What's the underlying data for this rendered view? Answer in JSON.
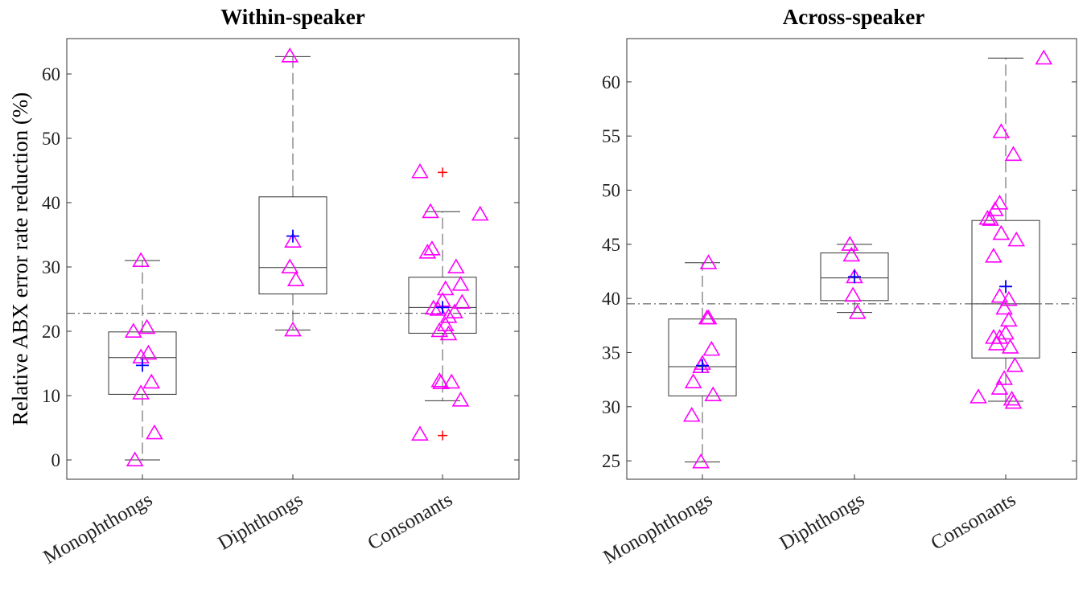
{
  "chart_data": [
    {
      "type": "box",
      "title": "Within-speaker",
      "ylabel": "Relative  ABX error rate reduction (%)",
      "ylim": [
        -3,
        65.5
      ],
      "yticks": [
        0,
        10,
        20,
        30,
        40,
        50,
        60
      ],
      "reference_line": 22.8,
      "categories": [
        "Monophthongs",
        "Diphthongs",
        "Consonants"
      ],
      "boxes": [
        {
          "min": 0,
          "q1": 10.2,
          "median": 15.9,
          "q3": 19.9,
          "max": 31.0,
          "mean": 14.7,
          "outliers": []
        },
        {
          "min": 20.2,
          "q1": 25.8,
          "median": 29.9,
          "q3": 40.9,
          "max": 62.7,
          "mean": 34.8,
          "outliers": []
        },
        {
          "min": 9.2,
          "q1": 19.7,
          "median": 23.7,
          "q3": 28.4,
          "max": 38.6,
          "mean": 23.7,
          "outliers": [
            44.7,
            3.8
          ]
        }
      ],
      "points": [
        [
          [
            -0.06,
            20.0
          ],
          [
            0.03,
            20.6
          ],
          [
            -0.01,
            16.0
          ],
          [
            0.04,
            16.6
          ],
          [
            0.06,
            12.1
          ],
          [
            -0.01,
            10.4
          ],
          [
            0.08,
            4.2
          ],
          [
            -0.05,
            0.0
          ],
          [
            -0.01,
            31.0
          ]
        ],
        [
          [
            -0.02,
            62.8
          ],
          [
            -0.02,
            30.0
          ],
          [
            0.0,
            34.0
          ],
          [
            0.02,
            28.0
          ],
          [
            0.0,
            20.2
          ]
        ],
        [
          [
            -0.15,
            44.8
          ],
          [
            -0.08,
            38.6
          ],
          [
            0.25,
            38.2
          ],
          [
            -0.1,
            32.3
          ],
          [
            -0.07,
            32.8
          ],
          [
            0.09,
            30.0
          ],
          [
            0.12,
            27.3
          ],
          [
            0.02,
            26.6
          ],
          [
            0.0,
            24.8
          ],
          [
            0.13,
            24.5
          ],
          [
            -0.06,
            23.6
          ],
          [
            -0.03,
            23.4
          ],
          [
            0.08,
            23.0
          ],
          [
            0.04,
            22.3
          ],
          [
            0.02,
            21.0
          ],
          [
            -0.02,
            20.1
          ],
          [
            0.04,
            19.6
          ],
          [
            -0.02,
            12.3
          ],
          [
            -0.01,
            12.0
          ],
          [
            0.06,
            12.1
          ],
          [
            0.12,
            9.3
          ],
          [
            -0.15,
            4.0
          ]
        ]
      ]
    },
    {
      "type": "box",
      "title": "Across-speaker",
      "ylabel": "",
      "ylim": [
        23.3,
        64.0
      ],
      "yticks": [
        25,
        30,
        35,
        40,
        45,
        50,
        55,
        60
      ],
      "reference_line": 39.5,
      "categories": [
        "Monophthongs",
        "Diphthongs",
        "Consonants"
      ],
      "boxes": [
        {
          "min": 24.9,
          "q1": 31.0,
          "median": 33.7,
          "q3": 38.1,
          "max": 43.3,
          "mean": 33.8,
          "outliers": []
        },
        {
          "min": 38.7,
          "q1": 39.8,
          "median": 41.9,
          "q3": 44.2,
          "max": 45.0,
          "mean": 42.0,
          "outliers": []
        },
        {
          "min": 30.5,
          "q1": 34.5,
          "median": 39.5,
          "q3": 47.2,
          "max": 62.2,
          "mean": 41.1,
          "outliers": []
        }
      ],
      "points": [
        [
          [
            0.04,
            43.3
          ],
          [
            0.03,
            38.2
          ],
          [
            0.04,
            38.2
          ],
          [
            0.06,
            35.3
          ],
          [
            0.0,
            34.0
          ],
          [
            -0.06,
            32.3
          ],
          [
            -0.01,
            33.7
          ],
          [
            0.07,
            31.1
          ],
          [
            -0.07,
            29.2
          ],
          [
            -0.01,
            24.9
          ]
        ],
        [
          [
            -0.03,
            45.0
          ],
          [
            -0.02,
            44.0
          ],
          [
            0.0,
            42.0
          ],
          [
            -0.01,
            40.3
          ],
          [
            0.02,
            38.7
          ]
        ],
        [
          [
            0.25,
            62.2
          ],
          [
            -0.03,
            55.4
          ],
          [
            0.05,
            53.3
          ],
          [
            -0.04,
            48.8
          ],
          [
            -0.07,
            48.2
          ],
          [
            -0.12,
            47.4
          ],
          [
            -0.1,
            47.3
          ],
          [
            0.07,
            45.4
          ],
          [
            -0.03,
            46.0
          ],
          [
            -0.08,
            43.9
          ],
          [
            -0.04,
            40.2
          ],
          [
            0.02,
            39.9
          ],
          [
            -0.01,
            39.1
          ],
          [
            0.02,
            38.0
          ],
          [
            -0.08,
            36.4
          ],
          [
            -0.04,
            36.4
          ],
          [
            -0.06,
            35.8
          ],
          [
            0.0,
            36.8
          ],
          [
            0.03,
            35.5
          ],
          [
            0.06,
            33.8
          ],
          [
            -0.01,
            32.6
          ],
          [
            -0.04,
            31.7
          ],
          [
            -0.18,
            30.9
          ],
          [
            0.04,
            30.7
          ],
          [
            0.05,
            30.4
          ]
        ]
      ]
    }
  ],
  "colors": {
    "points": "#ff00ff",
    "mean": "#0000ff",
    "outlier": "#ff0000",
    "box": "#333333",
    "reference": "#444444"
  }
}
